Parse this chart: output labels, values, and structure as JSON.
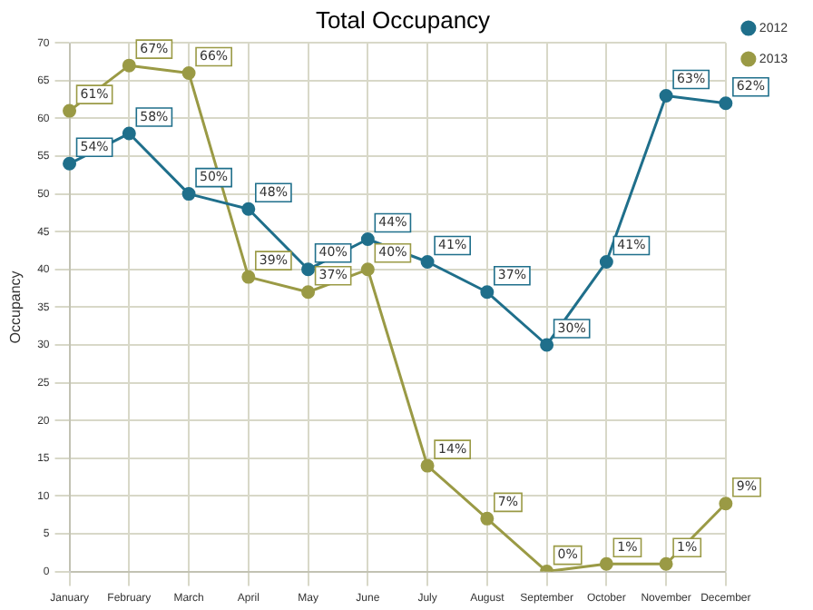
{
  "chart_data": {
    "type": "line",
    "title": "Total Occupancy",
    "ylabel": "Occupancy",
    "categories": [
      "January",
      "February",
      "March",
      "April",
      "May",
      "June",
      "July",
      "August",
      "September",
      "October",
      "November",
      "December"
    ],
    "series": [
      {
        "name": "2012",
        "color": "#1f6f8b",
        "values": [
          54,
          58,
          50,
          48,
          40,
          44,
          41,
          37,
          30,
          41,
          63,
          62
        ],
        "value_labels": [
          "54%",
          "58%",
          "50%",
          "48%",
          "40%",
          "44%",
          "41%",
          "37%",
          "30%",
          "41%",
          "63%",
          "62%"
        ]
      },
      {
        "name": "2013",
        "color": "#9a9a45",
        "values": [
          61,
          67,
          66,
          39,
          37,
          40,
          14,
          7,
          0,
          1,
          1,
          9
        ],
        "value_labels": [
          "61%",
          "67%",
          "66%",
          "39%",
          "37%",
          "40%",
          "14%",
          "7%",
          "0%",
          "1%",
          "1%",
          "9%"
        ]
      }
    ],
    "ylim": [
      0,
      70
    ],
    "yticks": [
      0,
      5,
      10,
      15,
      20,
      25,
      30,
      35,
      40,
      45,
      50,
      55,
      60,
      65,
      70
    ],
    "grid": true,
    "legend": "top right",
    "marker": "circle",
    "line_style": "solid"
  }
}
